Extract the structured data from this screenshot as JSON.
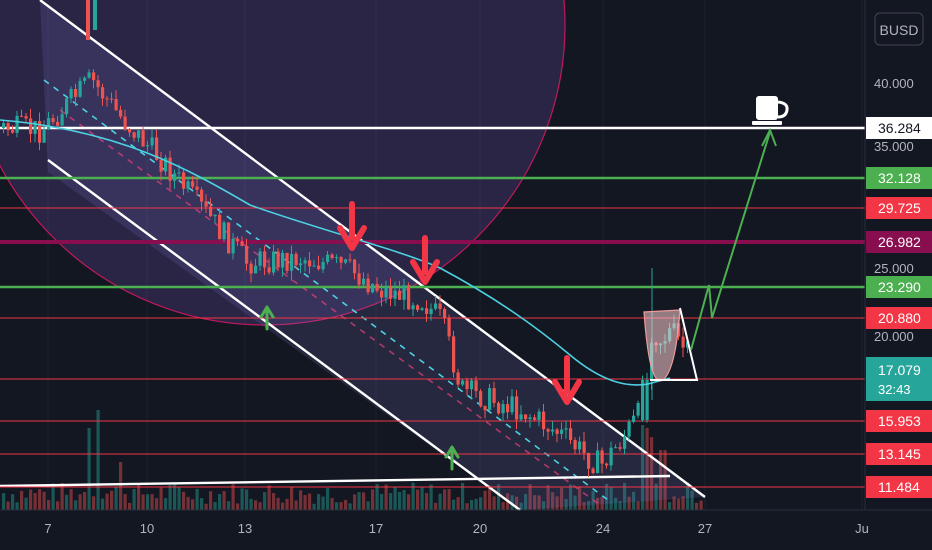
{
  "chart_data": {
    "type": "candlestick",
    "quote": "BUSD",
    "x_ticks": [
      "7",
      "10",
      "13",
      "17",
      "20",
      "24",
      "27",
      "Ju"
    ],
    "axis_ticks": [
      {
        "label": "40.000",
        "v": 40.0
      },
      {
        "label": "35.000",
        "v": 35.0
      },
      {
        "label": "25.000",
        "v": 25.0
      },
      {
        "label": "20.000",
        "v": 20.0
      }
    ],
    "levels": [
      {
        "label": "36.284",
        "v": 36.284,
        "color": "#ffffff",
        "kind": "resistance"
      },
      {
        "label": "32.128",
        "v": 32.128,
        "color": "#4caf50",
        "kind": "green"
      },
      {
        "label": "29.725",
        "v": 29.725,
        "color": "#f23645",
        "kind": "red"
      },
      {
        "label": "26.982",
        "v": 26.982,
        "color": "#880e4f",
        "kind": "purple"
      },
      {
        "label": "23.290",
        "v": 23.29,
        "color": "#4caf50",
        "kind": "green"
      },
      {
        "label": "20.880",
        "v": 20.88,
        "color": "#f23645",
        "kind": "red"
      },
      {
        "label": "15.953",
        "v": 15.953,
        "color": "#f23645",
        "kind": "red"
      },
      {
        "label": "13.145",
        "v": 13.145,
        "color": "#f23645",
        "kind": "red"
      },
      {
        "label": "11.484",
        "v": 11.484,
        "color": "#f23645",
        "kind": "red"
      }
    ],
    "last_price": {
      "label": "17.079",
      "countdown": "32:43",
      "v": 17.079,
      "color": "#26a69a"
    },
    "icon": "coffee-cup-icon",
    "colors": {
      "up": "#26a69a",
      "down": "#ef5350",
      "background": "#131722",
      "ma": "#4dd0e1"
    }
  }
}
